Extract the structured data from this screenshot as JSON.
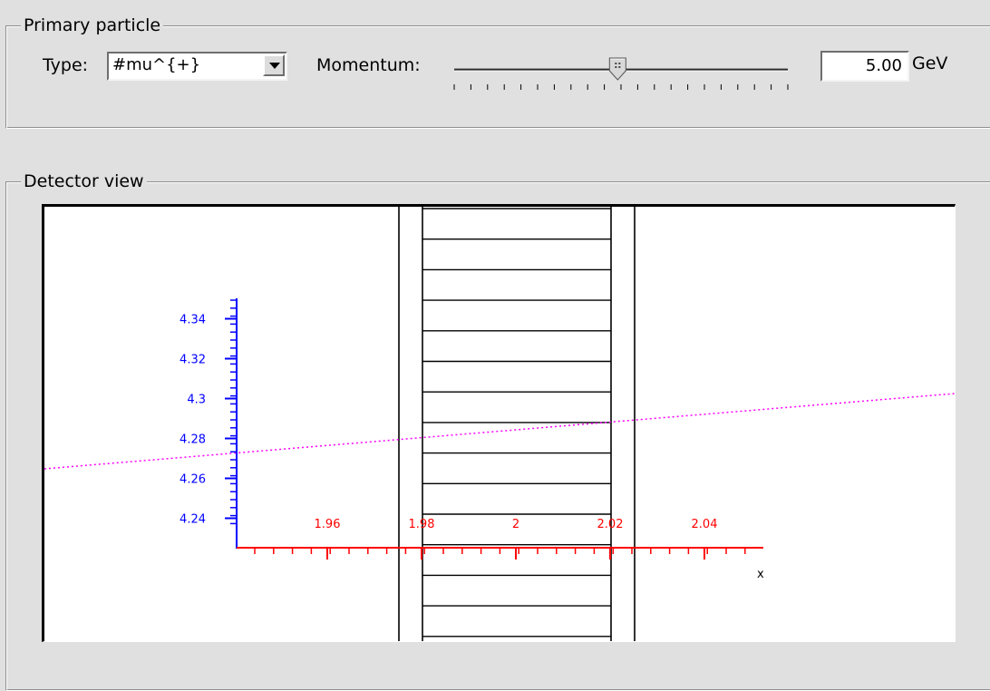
{
  "primary_particle": {
    "legend": "Primary particle",
    "type_label": "Type:",
    "type_value": "#mu^{+}",
    "momentum_label": "Momentum:",
    "momentum_slider_fraction": 0.49,
    "momentum_value": "5.00",
    "momentum_unit": "GeV"
  },
  "detector_view": {
    "legend": "Detector view",
    "y_ticks": [
      "4.34",
      "4.32",
      "4.3",
      "4.28",
      "4.26",
      "4.24"
    ],
    "x_ticks": [
      "1.96",
      "1.98",
      "2",
      "2.02",
      "2.04"
    ],
    "x_axis_title": "x",
    "colors": {
      "y_axis": "#0000ff",
      "x_axis": "#ff0000",
      "track": "#ff00ff"
    }
  }
}
